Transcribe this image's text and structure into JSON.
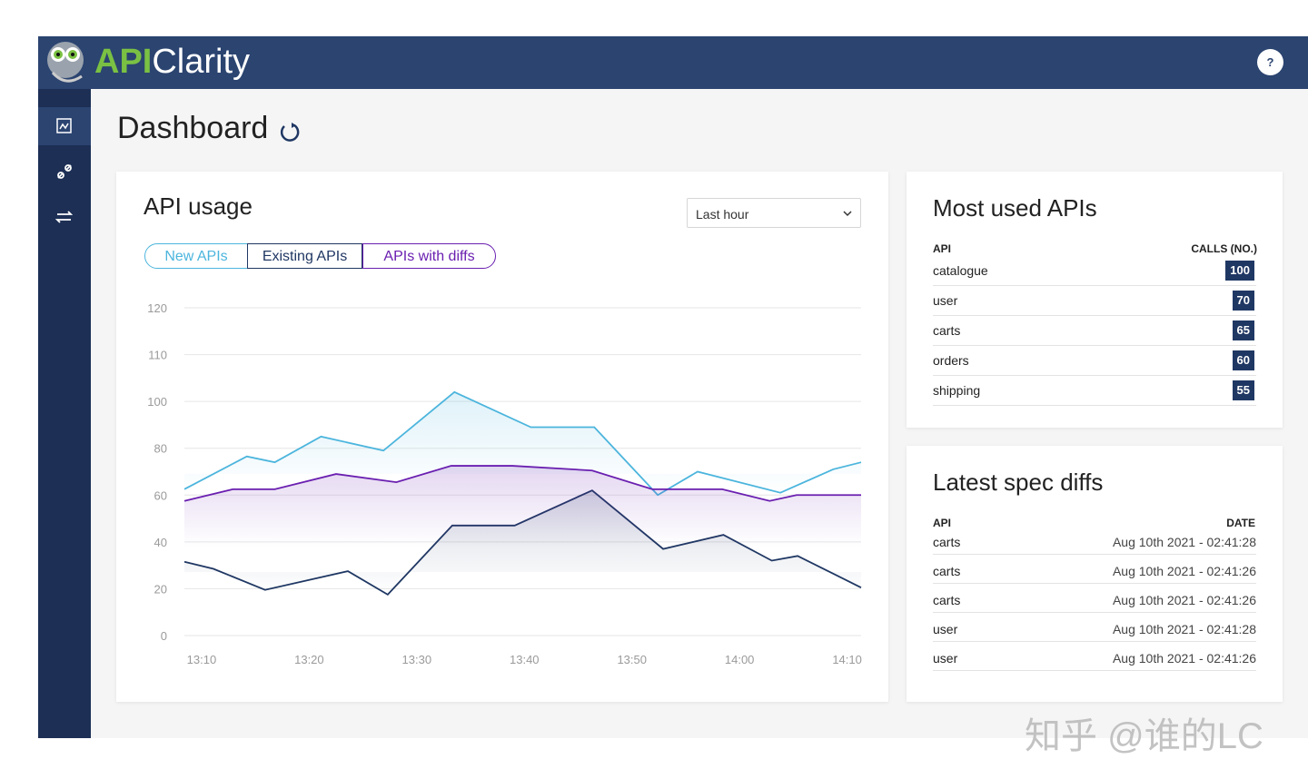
{
  "header": {
    "brand_strong": "API",
    "brand": "Clarity",
    "help": "?"
  },
  "page_title": "Dashboard",
  "api_usage": {
    "title": "API usage",
    "time_filter": "Last hour",
    "chart_data": {
      "type": "line",
      "ylim": [
        0,
        120
      ],
      "yticks": [
        0,
        20,
        40,
        60,
        80,
        100,
        110,
        120
      ],
      "xlim": [
        788.4,
        851.3
      ],
      "xticks": [
        {
          "value": 790,
          "label": "13:10"
        },
        {
          "value": 800,
          "label": "13:20"
        },
        {
          "value": 810,
          "label": "13:30"
        },
        {
          "value": 820,
          "label": "13:40"
        },
        {
          "value": 830,
          "label": "13:50"
        },
        {
          "value": 840,
          "label": "14:00"
        },
        {
          "value": 850,
          "label": "14:10"
        }
      ],
      "grid": true,
      "series": [
        {
          "name": "New APIs",
          "color": "#4cb5dd",
          "x": [
            788.4,
            794.2,
            796.8,
            801.1,
            806.9,
            813.5,
            820.6,
            826.5,
            832.4,
            836.1,
            843.8,
            848.7,
            851.3
          ],
          "values": [
            62.5,
            76.5,
            74,
            85,
            79,
            102,
            89,
            89,
            60,
            70,
            61,
            71,
            74
          ]
        },
        {
          "name": "Existing APIs",
          "color": "#1f3763",
          "x": [
            788.4,
            791.1,
            795.9,
            803.6,
            807.3,
            813.3,
            819.1,
            826.3,
            832.9,
            838.5,
            843.0,
            845.4,
            851.3
          ],
          "values": [
            31.5,
            28.5,
            19.5,
            27.5,
            17.5,
            47,
            47,
            62,
            37,
            43,
            32,
            34,
            20.5
          ]
        },
        {
          "name": "APIs with diffs",
          "color": "#6a1fb0",
          "x": [
            788.4,
            792.9,
            796.8,
            802.5,
            808.1,
            813.2,
            818.9,
            826.3,
            831.9,
            838.4,
            842.8,
            845.3,
            851.3
          ],
          "values": [
            57.5,
            62.5,
            62.5,
            69,
            65.5,
            72.5,
            72.5,
            70.5,
            62.5,
            62.5,
            57.5,
            60,
            60
          ]
        }
      ]
    }
  },
  "most_used": {
    "title": "Most used APIs",
    "columns": [
      "API",
      "CALLS (NO.)"
    ],
    "rows": [
      [
        "catalogue",
        100
      ],
      [
        "user",
        70
      ],
      [
        "carts",
        65
      ],
      [
        "orders",
        60
      ],
      [
        "shipping",
        55
      ]
    ]
  },
  "latest_diffs": {
    "title": "Latest spec diffs",
    "columns": [
      "API",
      "DATE"
    ],
    "rows": [
      [
        "carts",
        "Aug 10th 2021 - 02:41:28"
      ],
      [
        "carts",
        "Aug 10th 2021 - 02:41:26"
      ],
      [
        "carts",
        "Aug 10th 2021 - 02:41:26"
      ],
      [
        "user",
        "Aug 10th 2021 - 02:41:28"
      ],
      [
        "user",
        "Aug 10th 2021 - 02:41:26"
      ]
    ]
  },
  "watermark": "知乎 @谁的LC"
}
